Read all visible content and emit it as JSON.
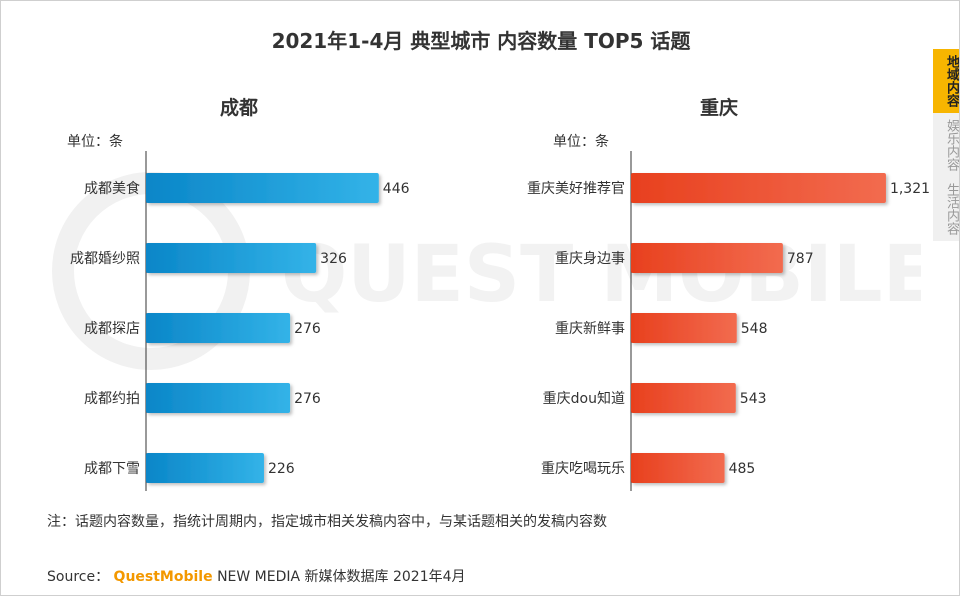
{
  "title": "2021年1-4月 典型城市 内容数量 TOP5 话题",
  "watermark": "QUEST MOBILE",
  "side_nav": {
    "items": [
      {
        "label": "地域内容",
        "active": true
      },
      {
        "label": "娱乐内容",
        "active": false
      },
      {
        "label": "生活内容",
        "active": false
      }
    ]
  },
  "note": "注：话题内容数量，指统计周期内，指定城市相关发稿内容中，与某话题相关的发稿内容数",
  "source": {
    "prefix": "Source：",
    "brand": "QuestMobile",
    "rest": "NEW MEDIA 新媒体数据库 2021年4月"
  },
  "colors": {
    "chengdu_bar_start": "#0a86c8",
    "chengdu_bar_end": "#33b3e8",
    "chongqing_bar_start": "#e8401e",
    "chongqing_bar_end": "#f26b4f",
    "active_nav": "#f7b500",
    "brand": "#f39800"
  },
  "chart_data": [
    {
      "type": "bar",
      "orientation": "horizontal",
      "title": "成都",
      "unit_label": "单位：条",
      "categories": [
        "成都美食",
        "成都婚纱照",
        "成都探店",
        "成都约拍",
        "成都下雪"
      ],
      "values": [
        446,
        326,
        276,
        276,
        226
      ],
      "value_labels": [
        "446",
        "326",
        "276",
        "276",
        "226"
      ],
      "xlim": [
        0,
        1400
      ]
    },
    {
      "type": "bar",
      "orientation": "horizontal",
      "title": "重庆",
      "unit_label": "单位：条",
      "categories": [
        "重庆美好推荐官",
        "重庆身边事",
        "重庆新鲜事",
        "重庆dou知道",
        "重庆吃喝玩乐"
      ],
      "values": [
        1321,
        787,
        548,
        543,
        485
      ],
      "value_labels": [
        "1,321",
        "787",
        "548",
        "543",
        "485"
      ],
      "xlim": [
        0,
        1400
      ]
    }
  ]
}
